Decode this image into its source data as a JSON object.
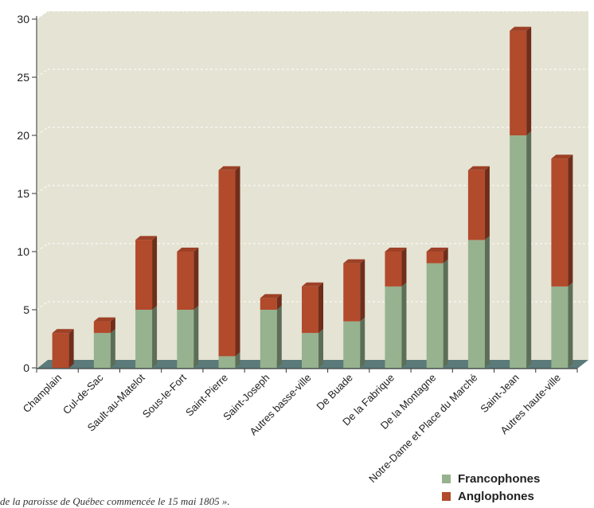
{
  "chart_data": {
    "type": "bar",
    "stacked": true,
    "categories": [
      "Champlain",
      "Cul-de-Sac",
      "Sault-au-Matelot",
      "Sous-le-Fort",
      "Saint-Pierre",
      "Saint-Joseph",
      "Autres basse-ville",
      "De Buade",
      "De la Fabrique",
      "De la Montagne",
      "Notre-Dame et Place du Marché",
      "Saint-Jean",
      "Autres haute-ville"
    ],
    "series": [
      {
        "name": "Francophones",
        "color": "#96b28e",
        "values": [
          0,
          3,
          5,
          5,
          1,
          5,
          3,
          4,
          7,
          9,
          11,
          20,
          7
        ]
      },
      {
        "name": "Anglophones",
        "color": "#b24a2c",
        "values": [
          3,
          1,
          6,
          5,
          16,
          1,
          4,
          5,
          3,
          1,
          6,
          9,
          11
        ]
      }
    ],
    "yticks": [
      0,
      5,
      10,
      15,
      20,
      25,
      30
    ],
    "ylim": [
      0,
      30
    ],
    "grid": true,
    "legend": "bottom-right",
    "colors": {
      "plot_background": "#e5e3d3",
      "floor": "#5b7a79",
      "grid": "#ffffff"
    }
  },
  "caption": "de la paroisse de Québec commencée le 15 mai 1805 »."
}
